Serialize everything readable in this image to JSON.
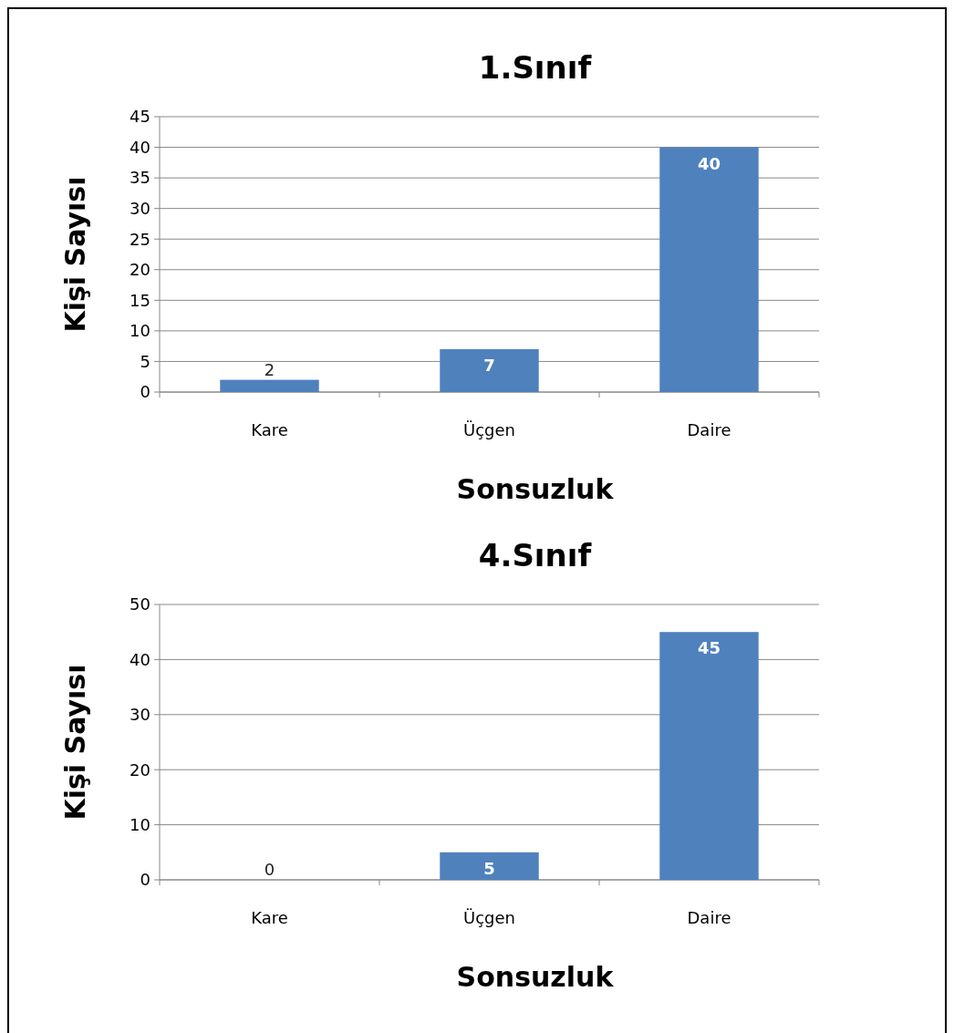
{
  "chart_data": [
    {
      "type": "bar",
      "title": "1.Sınıf",
      "xlabel": "Sonsuzluk",
      "ylabel": "Kişi Sayısı",
      "categories": [
        "Kare",
        "Üçgen",
        "Daire"
      ],
      "values": [
        2,
        7,
        40
      ],
      "color": "#4f81bd",
      "ylim": [
        0,
        45
      ],
      "yticks": [
        0,
        5,
        10,
        15,
        20,
        25,
        30,
        35,
        40,
        45
      ],
      "grid": "y",
      "data_labels": true
    },
    {
      "type": "bar",
      "title": "4.Sınıf",
      "xlabel": "Sonsuzluk",
      "ylabel": "Kişi Sayısı",
      "categories": [
        "Kare",
        "Üçgen",
        "Daire"
      ],
      "values": [
        0,
        5,
        45
      ],
      "color": "#4f81bd",
      "ylim": [
        0,
        50
      ],
      "yticks": [
        0,
        10,
        20,
        30,
        40,
        50
      ],
      "grid": "y",
      "data_labels": true
    }
  ]
}
